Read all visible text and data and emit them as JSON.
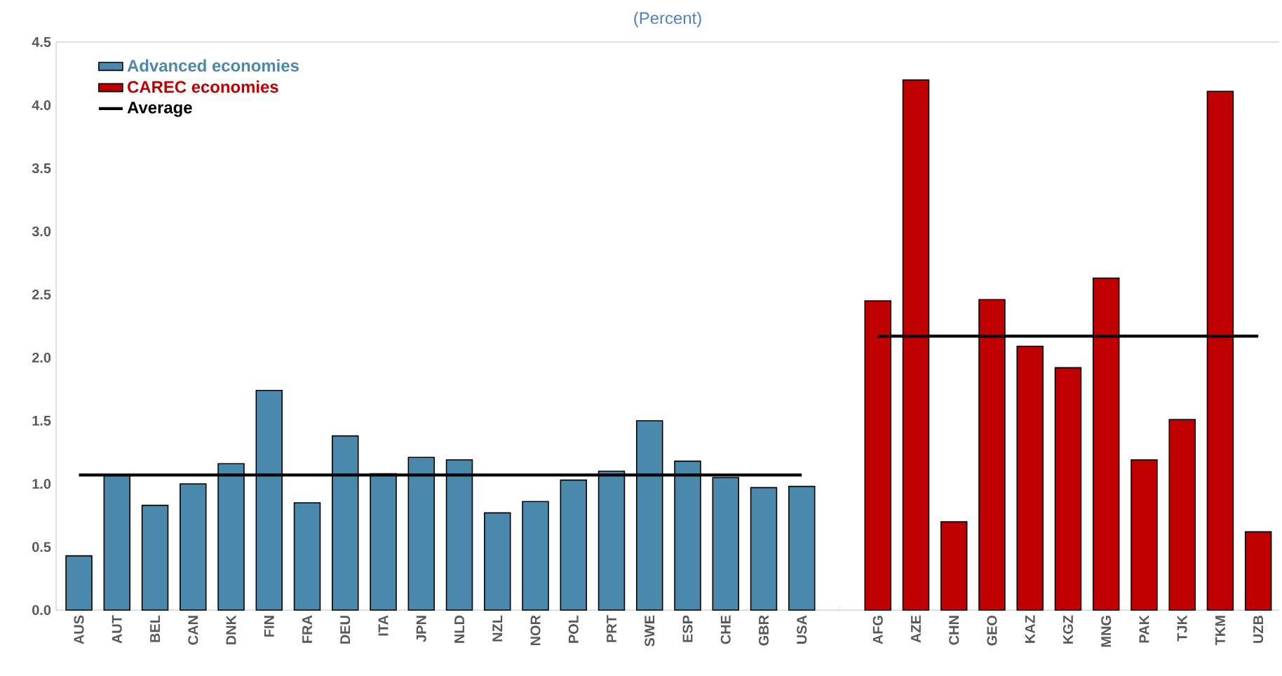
{
  "chart_data": {
    "type": "bar",
    "title": "(Percent)",
    "categories": [
      "AUS",
      "AUT",
      "BEL",
      "CAN",
      "DNK",
      "FIN",
      "FRA",
      "DEU",
      "ITA",
      "JPN",
      "NLD",
      "NZL",
      "NOR",
      "POL",
      "PRT",
      "SWE",
      "ESP",
      "CHE",
      "GBR",
      "USA",
      null,
      "AFG",
      "AZE",
      "CHN",
      "GEO",
      "KAZ",
      "KGZ",
      "MNG",
      "PAK",
      "TJK",
      "TKM",
      "UZB"
    ],
    "series": [
      {
        "name": "Advanced economies",
        "color": "#4a89ab",
        "values": [
          0.43,
          1.07,
          0.83,
          1.0,
          1.16,
          1.74,
          0.85,
          1.38,
          1.08,
          1.21,
          1.19,
          0.77,
          0.86,
          1.03,
          1.1,
          1.5,
          1.18,
          1.05,
          0.97,
          0.98,
          null,
          null,
          null,
          null,
          null,
          null,
          null,
          null,
          null,
          null,
          null,
          null
        ]
      },
      {
        "name": "CAREC economies",
        "color": "#c00000",
        "values": [
          null,
          null,
          null,
          null,
          null,
          null,
          null,
          null,
          null,
          null,
          null,
          null,
          null,
          null,
          null,
          null,
          null,
          null,
          null,
          null,
          null,
          2.45,
          4.2,
          0.7,
          2.46,
          2.09,
          1.92,
          2.63,
          1.19,
          1.51,
          4.11,
          0.62
        ]
      },
      {
        "name": "Average",
        "type": "line",
        "color": "#000000",
        "values": [
          1.07,
          1.07,
          1.07,
          1.07,
          1.07,
          1.07,
          1.07,
          1.07,
          1.07,
          1.07,
          1.07,
          1.07,
          1.07,
          1.07,
          1.07,
          1.07,
          1.07,
          1.07,
          1.07,
          1.07,
          null,
          2.17,
          2.17,
          2.17,
          2.17,
          2.17,
          2.17,
          2.17,
          2.17,
          2.17,
          2.17,
          2.17
        ]
      }
    ],
    "ylim": [
      0,
      4.5
    ],
    "yticks": [
      {
        "value": 0,
        "label": "0.0"
      },
      {
        "value": 0.5,
        "label": "0.5"
      },
      {
        "value": 1,
        "label": "1.0"
      },
      {
        "value": 1.5,
        "label": "1.5"
      },
      {
        "value": 2,
        "label": "2.0"
      },
      {
        "value": 2.5,
        "label": "2.5"
      },
      {
        "value": 3,
        "label": "3.0"
      },
      {
        "value": 3.5,
        "label": "3.5"
      },
      {
        "value": 4,
        "label": "4.0"
      },
      {
        "value": 4.5,
        "label": "4.5"
      }
    ],
    "legend": "top left",
    "marker": "none",
    "line_style": "solid"
  }
}
